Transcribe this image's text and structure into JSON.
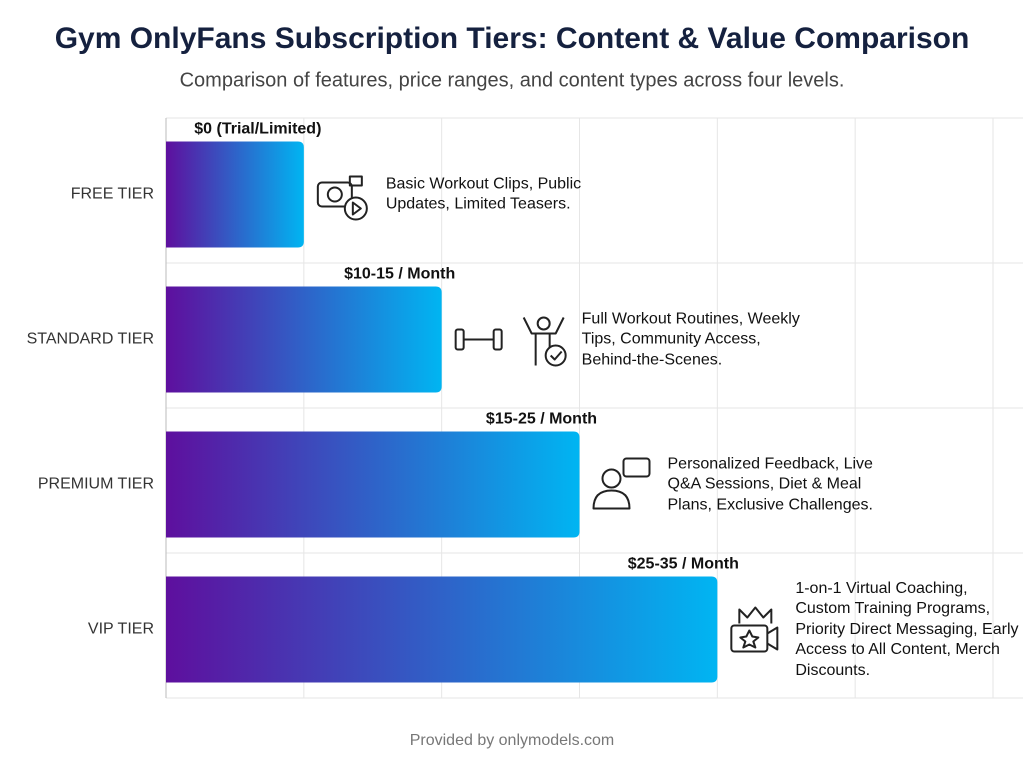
{
  "chart_data": {
    "type": "bar",
    "orientation": "horizontal",
    "title": "Gym OnlyFans Subscription Tiers: Content & Value Comparison",
    "subtitle": "Comparison of features, price ranges, and content types across four levels.",
    "categories": [
      "FREE TIER",
      "STANDARD TIER",
      "PREMIUM TIER",
      "VIP TIER"
    ],
    "values": [
      1,
      2,
      3,
      4
    ],
    "price_labels": [
      "$0 (Trial/Limited)",
      "$10-15 / Month",
      "$15-25 / Month",
      "$25-35 / Month"
    ],
    "descriptions": [
      "Basic Workout Clips, Public Updates, Limited Teasers.",
      "Full Workout Routines, Weekly Tips, Community Access, Behind-the-Scenes.",
      "Personalized Feedback, Live Q&A Sessions, Diet & Meal Plans, Exclusive Challenges.",
      "1-on-1 Virtual Coaching, Custom Training Programs, Priority Direct Messaging, Early Access to All Content, Merch Discounts."
    ],
    "color_start": "#5e0f9e",
    "color_end": "#00b5f2",
    "xlim": [
      0,
      6
    ],
    "xticks": [
      0,
      1,
      2,
      3,
      4,
      5,
      6
    ],
    "grid": true,
    "footer": "Provided by onlymodels.com"
  }
}
